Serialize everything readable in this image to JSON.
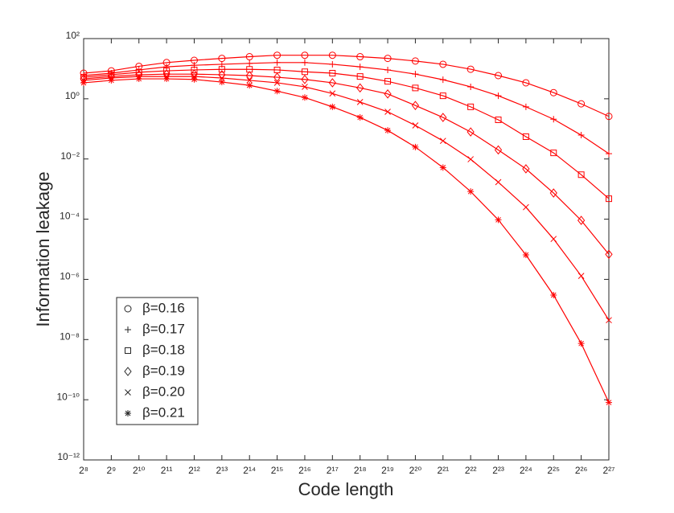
{
  "chart_data": {
    "type": "line",
    "xlabel": "Code length",
    "ylabel": "Information leakage",
    "xscale": "log",
    "yscale": "log",
    "x": [
      256,
      512,
      1024,
      2048,
      4096,
      8192,
      16384,
      32768,
      65536,
      131072,
      262144,
      524288,
      1048576,
      2097152,
      4194304,
      8388608,
      16777216,
      33554432,
      67108864,
      134217728
    ],
    "series": [
      {
        "name": "β=0.16",
        "color": "#ff0000",
        "marker": "o",
        "values": [
          7.1,
          8.5,
          12,
          16,
          19,
          22,
          25,
          28,
          28,
          28,
          25,
          22,
          18,
          14,
          9.6,
          5.9,
          3.4,
          1.6,
          0.68,
          0.26
        ]
      },
      {
        "name": "β=0.17",
        "color": "#ff0000",
        "marker": "+",
        "values": [
          5.9,
          7.1,
          9.1,
          11.5,
          13,
          14,
          15,
          16,
          16,
          14,
          11.5,
          9.1,
          6.6,
          4.3,
          2.5,
          1.26,
          0.54,
          0.21,
          0.062,
          0.015
        ]
      },
      {
        "name": "β=0.18",
        "color": "#ff0000",
        "marker": "s",
        "values": [
          5.2,
          6.3,
          7.6,
          8.5,
          9.1,
          9.5,
          9.5,
          9.1,
          7.9,
          7.1,
          5.5,
          3.8,
          2.3,
          1.26,
          0.54,
          0.2,
          0.055,
          0.016,
          0.003,
          0.00048
        ]
      },
      {
        "name": "β=0.19",
        "color": "#ff0000",
        "marker": "d",
        "values": [
          4.6,
          5.5,
          6.3,
          6.6,
          6.6,
          6.3,
          5.9,
          5.2,
          4.4,
          3.4,
          2.3,
          1.45,
          0.6,
          0.24,
          0.079,
          0.02,
          0.0047,
          0.00074,
          9.1e-05,
          6.8e-06
        ]
      },
      {
        "name": "β=0.20",
        "color": "#ff0000",
        "marker": "x",
        "values": [
          4.1,
          4.9,
          5.5,
          5.5,
          5.5,
          4.9,
          4.1,
          3.4,
          2.5,
          1.5,
          0.78,
          0.37,
          0.13,
          0.04,
          0.0098,
          0.0017,
          0.00025,
          2.2e-05,
          1.3e-06,
          4.4e-08
        ]
      },
      {
        "name": "β=0.21",
        "color": "#ff0000",
        "marker": "*",
        "values": [
          3.4,
          4.1,
          4.6,
          4.6,
          4.4,
          3.6,
          2.8,
          1.8,
          1.1,
          0.54,
          0.24,
          0.089,
          0.025,
          0.0052,
          0.00083,
          9.5e-05,
          6.5e-06,
          3e-07,
          7.4e-09,
          8.1e-11
        ]
      }
    ],
    "xlim": [
      256,
      134217728
    ],
    "xticks": [
      {
        "value": 256,
        "label": "2⁸"
      },
      {
        "value": 512,
        "label": "2⁹"
      },
      {
        "value": 1024,
        "label": "2¹⁰"
      },
      {
        "value": 2048,
        "label": "2¹¹"
      },
      {
        "value": 4096,
        "label": "2¹²"
      },
      {
        "value": 8192,
        "label": "2¹³"
      },
      {
        "value": 16384,
        "label": "2¹⁴"
      },
      {
        "value": 32768,
        "label": "2¹⁵"
      },
      {
        "value": 65536,
        "label": "2¹⁶"
      },
      {
        "value": 131072,
        "label": "2¹⁷"
      },
      {
        "value": 262144,
        "label": "2¹⁸"
      },
      {
        "value": 524288,
        "label": "2¹⁹"
      },
      {
        "value": 1048576,
        "label": "2²⁰"
      },
      {
        "value": 2097152,
        "label": "2²¹"
      },
      {
        "value": 4194304,
        "label": "2²²"
      },
      {
        "value": 8388608,
        "label": "2²³"
      },
      {
        "value": 16777216,
        "label": "2²⁴"
      },
      {
        "value": 33554432,
        "label": "2²⁵"
      },
      {
        "value": 67108864,
        "label": "2²⁶"
      },
      {
        "value": 134217728,
        "label": "2²⁷"
      }
    ],
    "ylim": [
      1e-12,
      100
    ],
    "yticks": [
      {
        "value": 1e-12,
        "label": "10⁻¹²"
      },
      {
        "value": 1e-10,
        "label": "10⁻¹⁰"
      },
      {
        "value": 1e-08,
        "label": "10⁻⁸"
      },
      {
        "value": 1e-06,
        "label": "10⁻⁶"
      },
      {
        "value": 0.0001,
        "label": "10⁻⁴"
      },
      {
        "value": 0.01,
        "label": "10⁻²"
      },
      {
        "value": 1,
        "label": "10⁰"
      },
      {
        "value": 100,
        "label": "10²"
      }
    ],
    "grid": false,
    "legend": "lower left"
  }
}
